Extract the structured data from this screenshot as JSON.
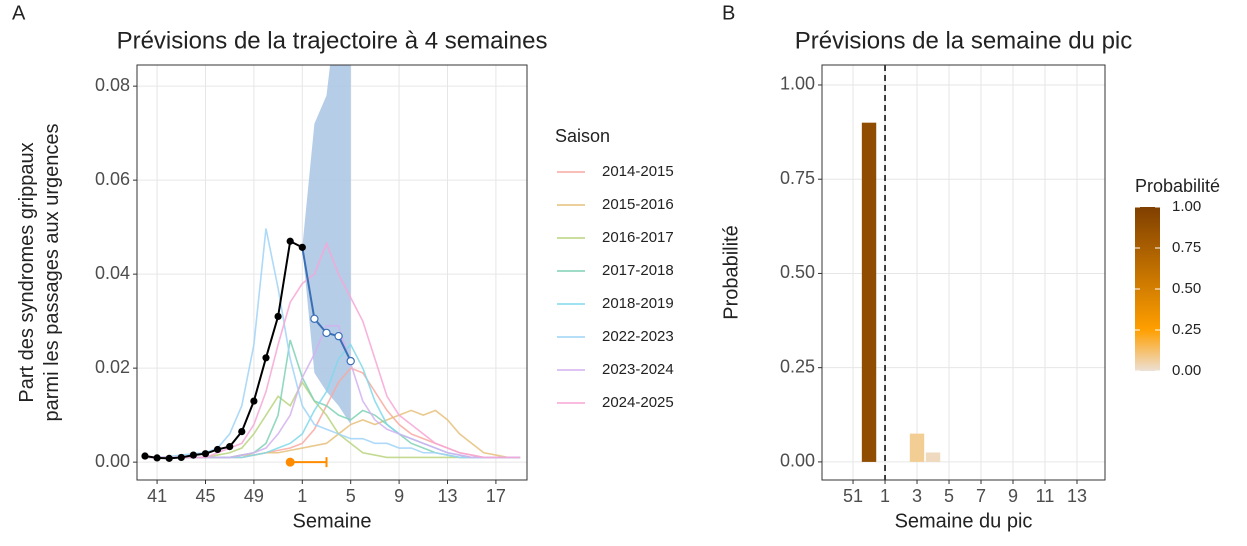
{
  "chart_data": [
    {
      "type": "line",
      "panel": "A",
      "title": "Prévisions de la trajectoire à 4 semaines",
      "x_label": "Semaine",
      "y_label": [
        "Part des syndromes grippaux",
        "parmi les passages aux urgences"
      ],
      "xlim": [
        39.34,
        71.57
      ],
      "ylim": [
        -0.0038,
        0.0845
      ],
      "xticks": [
        41,
        45,
        49,
        {
          "value": 53,
          "label": "1"
        },
        {
          "value": 57,
          "label": "5"
        },
        {
          "value": 61,
          "label": "9"
        },
        {
          "value": 65,
          "label": "13"
        },
        {
          "value": 69,
          "label": "17"
        }
      ],
      "yticks": [
        {
          "value": 0,
          "label": "0.00"
        },
        {
          "value": 0.02,
          "label": "0.02"
        },
        {
          "value": 0.04,
          "label": "0.04"
        },
        {
          "value": 0.06,
          "label": "0.06"
        },
        {
          "value": 0.08,
          "label": "0.08"
        }
      ],
      "grid": true,
      "legend_title": "Saison",
      "x": [
        40,
        41,
        42,
        43,
        44,
        45,
        46,
        47,
        48,
        49,
        50,
        51,
        52,
        53,
        54,
        55,
        56,
        57,
        58,
        59,
        60,
        61,
        62,
        63,
        64,
        65,
        66,
        67,
        68,
        69,
        70,
        71
      ],
      "series": [
        {
          "name": "2014-2015",
          "color": "#f8a8a0",
          "values": [
            0.001,
            0.001,
            0.001,
            0.001,
            0.001,
            0.001,
            0.001,
            0.001,
            0.001,
            0.0015,
            0.002,
            0.0025,
            0.003,
            0.004,
            0.007,
            0.012,
            0.017,
            0.02,
            0.019,
            0.015,
            0.011,
            0.008,
            0.006,
            0.005,
            0.004,
            0.003,
            0.002,
            0.0015,
            0.001,
            0.001,
            0.001,
            0.001
          ]
        },
        {
          "name": "2015-2016",
          "color": "#e6c07a",
          "values": [
            0.001,
            0.001,
            0.001,
            0.001,
            0.001,
            0.001,
            0.001,
            0.001,
            0.0015,
            0.0015,
            0.002,
            0.002,
            0.0025,
            0.003,
            0.0035,
            0.004,
            0.006,
            0.008,
            0.009,
            0.008,
            0.009,
            0.01,
            0.011,
            0.01,
            0.011,
            0.009,
            0.006,
            0.004,
            0.002,
            0.0015,
            0.001,
            0.001
          ]
        },
        {
          "name": "2016-2017",
          "color": "#b8d47e",
          "values": [
            0.001,
            0.001,
            0.001,
            0.001,
            0.001,
            0.001,
            0.0015,
            0.002,
            0.003,
            0.006,
            0.01,
            0.014,
            0.012,
            0.017,
            0.013,
            0.01,
            0.006,
            0.004,
            0.002,
            0.0015,
            0.001,
            0.001,
            0.001,
            0.001,
            0.001,
            0.001,
            0.001,
            0.001,
            0.001,
            0.001,
            0.001,
            0.001
          ]
        },
        {
          "name": "2017-2018",
          "color": "#7fd1b5",
          "values": [
            0.001,
            0.001,
            0.001,
            0.001,
            0.001,
            0.001,
            0.001,
            0.001,
            0.0015,
            0.002,
            0.004,
            0.01,
            0.026,
            0.018,
            0.013,
            0.012,
            0.01,
            0.009,
            0.011,
            0.01,
            0.008,
            0.006,
            0.004,
            0.003,
            0.002,
            0.0015,
            0.001,
            0.001,
            0.001,
            0.001,
            0.001,
            0.001
          ]
        },
        {
          "name": "2018-2019",
          "color": "#80d8ea",
          "values": [
            0.001,
            0.001,
            0.001,
            0.001,
            0.001,
            0.001,
            0.001,
            0.001,
            0.001,
            0.0015,
            0.002,
            0.003,
            0.004,
            0.006,
            0.011,
            0.015,
            0.022,
            0.025,
            0.02,
            0.013,
            0.008,
            0.006,
            0.005,
            0.004,
            0.003,
            0.002,
            0.0015,
            0.001,
            0.001,
            0.001,
            0.001,
            0.001
          ]
        },
        {
          "name": "2022-2023",
          "color": "#9fd3f7",
          "values": [
            0.001,
            0.001,
            0.0012,
            0.0015,
            0.0018,
            0.002,
            0.003,
            0.006,
            0.012,
            0.025,
            0.0497,
            0.037,
            0.022,
            0.012,
            0.008,
            0.007,
            0.006,
            0.005,
            0.005,
            0.004,
            0.004,
            0.003,
            0.003,
            0.002,
            0.002,
            0.0015,
            0.001,
            0.001,
            0.001,
            0.001,
            0.001,
            0.001
          ]
        },
        {
          "name": "2023-2024",
          "color": "#d4b0ee",
          "values": [
            0.001,
            0.001,
            0.001,
            0.001,
            0.001,
            0.001,
            0.001,
            0.001,
            0.0015,
            0.002,
            0.003,
            0.006,
            0.01,
            0.018,
            0.023,
            0.029,
            0.029,
            0.021,
            0.013,
            0.009,
            0.007,
            0.006,
            0.005,
            0.004,
            0.003,
            0.002,
            0.0015,
            0.001,
            0.001,
            0.001,
            0.001,
            0.001
          ]
        },
        {
          "name": "2024-2025",
          "color": "#f7a6d6",
          "values": [
            0.001,
            0.001,
            0.001,
            0.001,
            0.001,
            0.001,
            0.002,
            0.003,
            0.004,
            0.008,
            0.015,
            0.025,
            0.034,
            0.038,
            0.04,
            0.0465,
            0.04,
            0.035,
            0.03,
            0.022,
            0.014,
            0.01,
            0.008,
            0.006,
            0.004,
            0.003,
            0.002,
            0.0015,
            0.001,
            0.001,
            0.001,
            0.001
          ]
        }
      ],
      "ribbon": {
        "color": "#a9c4e4",
        "x": [
          53,
          54,
          55,
          56,
          57
        ],
        "lower": [
          0.0457,
          0.019,
          0.015,
          0.012,
          0.008
        ],
        "upper": [
          0.0457,
          0.072,
          0.078,
          0.1,
          0.12
        ]
      },
      "observed": {
        "color": "#000000",
        "x": [
          40,
          41,
          42,
          43,
          44,
          45,
          46,
          47,
          48,
          49,
          50,
          51,
          52,
          53
        ],
        "values": [
          0.0013,
          0.0009,
          0.0008,
          0.001,
          0.0015,
          0.0018,
          0.0027,
          0.0033,
          0.0065,
          0.013,
          0.0222,
          0.031,
          0.047,
          0.0457
        ]
      },
      "forecast": {
        "color": "#3a6fb5",
        "x": [
          53,
          54,
          55,
          56,
          57
        ],
        "values": [
          0.0457,
          0.0305,
          0.0275,
          0.0268,
          0.0215
        ]
      },
      "peak_forecast": {
        "color": "#ff8c00",
        "x": 52,
        "lower": 52,
        "upper": 55,
        "y": 0
      }
    },
    {
      "type": "bar",
      "panel": "B",
      "title": "Prévisions de la semaine du pic",
      "x_label": "Semaine du pic",
      "y_label": "Probabilité",
      "x": [
        52,
        55,
        56
      ],
      "values": [
        0.9,
        0.075,
        0.025
      ],
      "xlim": [
        49.06,
        66.75
      ],
      "ylim": [
        -0.048,
        1.053
      ],
      "xticks": [
        51,
        {
          "value": 53,
          "label": "1"
        },
        {
          "value": 55,
          "label": "3"
        },
        {
          "value": 57,
          "label": "5"
        },
        {
          "value": 59,
          "label": "7"
        },
        {
          "value": 61,
          "label": "9"
        },
        {
          "value": 63,
          "label": "11"
        },
        {
          "value": 65,
          "label": "13"
        }
      ],
      "yticks": [
        {
          "value": 0,
          "label": "0.00"
        },
        {
          "value": 0.25,
          "label": "0.25"
        },
        {
          "value": 0.5,
          "label": "0.50"
        },
        {
          "value": 0.75,
          "label": "0.75"
        },
        {
          "value": 1,
          "label": "1.00"
        }
      ],
      "grid": true,
      "vline": 53,
      "colorscale": [
        [
          0,
          "#ede0d4"
        ],
        [
          0.25,
          "#ff9f00"
        ],
        [
          1,
          "#7f3f00"
        ]
      ],
      "colorbar": {
        "title": "Probabilité",
        "lim": [
          0,
          1
        ],
        "ticks": [
          {
            "value": 0,
            "label": "0.00"
          },
          {
            "value": 0.25,
            "label": "0.25"
          },
          {
            "value": 0.5,
            "label": "0.50"
          },
          {
            "value": 0.75,
            "label": "0.75"
          },
          {
            "value": 1,
            "label": "1.00"
          }
        ]
      }
    }
  ]
}
